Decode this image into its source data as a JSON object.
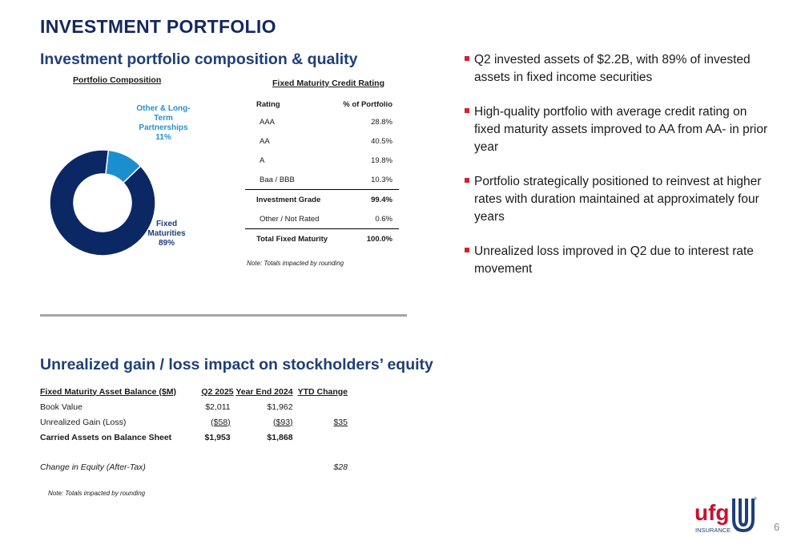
{
  "page": {
    "title": "INVESTMENT PORTFOLIO",
    "page_number": "6"
  },
  "composition": {
    "heading": "Investment portfolio composition & quality",
    "subtitle": "Portfolio Composition",
    "colors": {
      "fixed": "#0b2865",
      "other": "#1b8ed0"
    },
    "segments": [
      {
        "label_lines": [
          "Fixed",
          "Maturities",
          "89%"
        ],
        "value": 89
      },
      {
        "label_lines": [
          "Other & Long-",
          "Term",
          "Partnerships",
          "11%"
        ],
        "value": 11
      }
    ]
  },
  "credit_rating": {
    "title": "Fixed Maturity Credit Rating",
    "headers": [
      "Rating",
      "% of Portfolio"
    ],
    "rows": [
      [
        "AAA",
        "28.8%"
      ],
      [
        "AA",
        "40.5%"
      ],
      [
        "A",
        "19.8%"
      ],
      [
        "Baa / BBB",
        "10.3%"
      ],
      [
        "Investment Grade",
        "99.4%"
      ],
      [
        "Other / Not Rated",
        "0.6%"
      ],
      [
        "Total Fixed Maturity",
        "100.0%"
      ]
    ],
    "note": "Note: Totals impacted by rounding"
  },
  "bullets": [
    "Q2 invested assets of $2.2B, with 89% of invested assets in fixed income securities",
    "High-quality portfolio with average credit rating on fixed maturity assets improved to AA from AA- in prior year",
    "Portfolio strategically positioned to reinvest at higher rates with duration maintained at approximately four years",
    "Unrealized loss improved in Q2 due to interest rate movement"
  ],
  "equity": {
    "heading": "Unrealized gain / loss impact on stockholders’ equity",
    "headers": [
      "Fixed Maturity Asset Balance ($M)",
      "Q2 2025",
      "Year End 2024",
      "YTD Change"
    ],
    "rows": [
      [
        "Book Value",
        "$2,011",
        "$1,962",
        ""
      ],
      [
        "Unrealized Gain (Loss)",
        "($58)",
        "($93)",
        "$35"
      ],
      [
        "Carried Assets on Balance Sheet",
        "$1,953",
        "$1,868",
        ""
      ]
    ],
    "change_row": [
      "Change in Equity (After-Tax)",
      "",
      "",
      "$28"
    ],
    "note": "Note: Totals impacted by rounding"
  },
  "logo": {
    "wordmark": "ufg",
    "tagline": "INSURANCE",
    "registered": "®",
    "colors": {
      "red": "#c8102e",
      "blue": "#1f3f77"
    }
  }
}
